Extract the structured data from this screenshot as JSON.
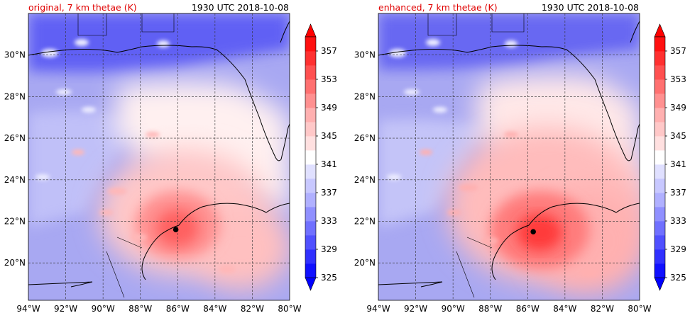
{
  "panels": [
    {
      "id": "original",
      "title": "original, 7 km thetae (K)",
      "time": "1930 UTC 2018-10-08",
      "storm_center": {
        "lon": -86.1,
        "lat": 21.6
      },
      "core_intensity": 0.85
    },
    {
      "id": "enhanced",
      "title": "enhanced, 7 km thetae (K)",
      "time": "1930 UTC 2018-10-08",
      "storm_center": {
        "lon": -85.7,
        "lat": 21.5
      },
      "core_intensity": 1.0
    }
  ],
  "map": {
    "lon_range": [
      -94,
      -80
    ],
    "lat_range": [
      18.2,
      32.0
    ],
    "lon_ticks": [
      "94°W",
      "92°W",
      "90°W",
      "88°W",
      "86°W",
      "84°W",
      "82°W",
      "80°W"
    ],
    "lon_tick_values": [
      -94,
      -92,
      -90,
      -88,
      -86,
      -84,
      -82,
      -80
    ],
    "lat_ticks": [
      "20°N",
      "22°N",
      "24°N",
      "26°N",
      "28°N",
      "30°N"
    ],
    "lat_tick_values": [
      20,
      22,
      24,
      26,
      28,
      30
    ],
    "grid": true
  },
  "colorbar": {
    "units": "K",
    "levels": [
      325,
      327,
      329,
      331,
      333,
      335,
      337,
      339,
      341,
      343,
      345,
      347,
      349,
      351,
      353,
      355,
      357,
      359
    ],
    "tick_labels": [
      "325",
      "329",
      "333",
      "337",
      "341",
      "345",
      "349",
      "353",
      "357"
    ],
    "colors": [
      "#1010ff",
      "#3030ff",
      "#5050ff",
      "#7070ff",
      "#9090ff",
      "#b0b0ff",
      "#c8c8ff",
      "#e0e0ff",
      "#ffffff",
      "#ffe0e0",
      "#ffc8c8",
      "#ffb0b0",
      "#ff9090",
      "#ff7070",
      "#ff5050",
      "#ff3030",
      "#ff1010"
    ],
    "extend": "both",
    "under_color": "#0000ff",
    "over_color": "#ff0000"
  }
}
